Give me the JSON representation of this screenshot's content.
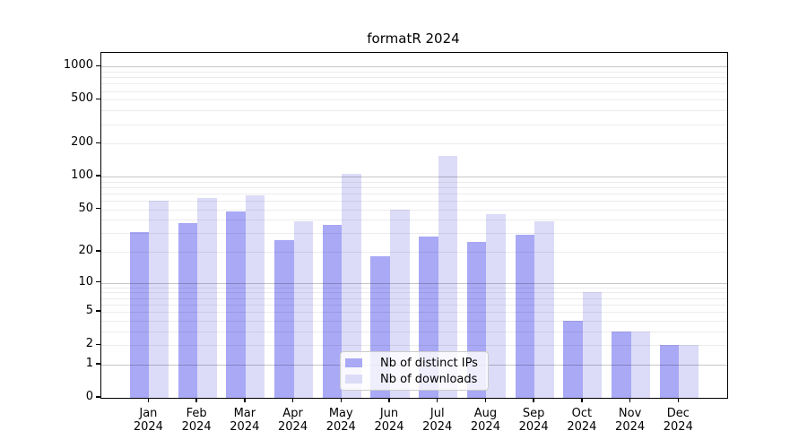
{
  "title": "formatR 2024",
  "year": "2024",
  "colors": {
    "distinct_ips": "#a9a9f6",
    "downloads": "#dcdcf8",
    "spine": "#000000"
  },
  "legend": {
    "items": [
      {
        "label": "Nb of distinct IPs",
        "color": "#a9a9f6"
      },
      {
        "label": "Nb of downloads",
        "color": "#dcdcf8"
      }
    ]
  },
  "y_axis": {
    "tick_values": [
      0,
      1,
      2,
      5,
      10,
      20,
      50,
      100,
      200,
      500,
      1000
    ],
    "tick_labels": [
      "0",
      "1",
      "2",
      "5",
      "10",
      "20",
      "50",
      "100",
      "200",
      "500",
      "1000"
    ]
  },
  "x_axis": {
    "months": [
      "Jan",
      "Feb",
      "Mar",
      "Apr",
      "May",
      "Jun",
      "Jul",
      "Aug",
      "Sep",
      "Oct",
      "Nov",
      "Dec"
    ],
    "year": "2024"
  },
  "chart_data": {
    "type": "bar",
    "title": "formatR 2024",
    "categories": [
      "Jan 2024",
      "Feb 2024",
      "Mar 2024",
      "Apr 2024",
      "May 2024",
      "Jun 2024",
      "Jul 2024",
      "Aug 2024",
      "Sep 2024",
      "Oct 2024",
      "Nov 2024",
      "Dec 2024"
    ],
    "series": [
      {
        "name": "Nb of distinct IPs",
        "color": "#a9a9f6",
        "values": [
          31,
          37,
          48,
          26,
          36,
          18,
          28,
          25,
          29,
          4,
          3,
          2
        ]
      },
      {
        "name": "Nb of downloads",
        "color": "#dcdcf8",
        "values": [
          60,
          64,
          67,
          39,
          105,
          50,
          155,
          45,
          39,
          8,
          3,
          2
        ]
      }
    ],
    "y_scale": "log1p",
    "y_ticks": [
      0,
      1,
      2,
      5,
      10,
      20,
      50,
      100,
      200,
      500,
      1000
    ],
    "major_gridlines": [
      1,
      10,
      100,
      1000
    ],
    "minor_gridlines": [
      2,
      3,
      4,
      5,
      6,
      7,
      8,
      9,
      20,
      30,
      40,
      50,
      60,
      70,
      80,
      90,
      200,
      300,
      400,
      500,
      600,
      700,
      800,
      900
    ],
    "grid": true,
    "legend_position": "lower center"
  }
}
